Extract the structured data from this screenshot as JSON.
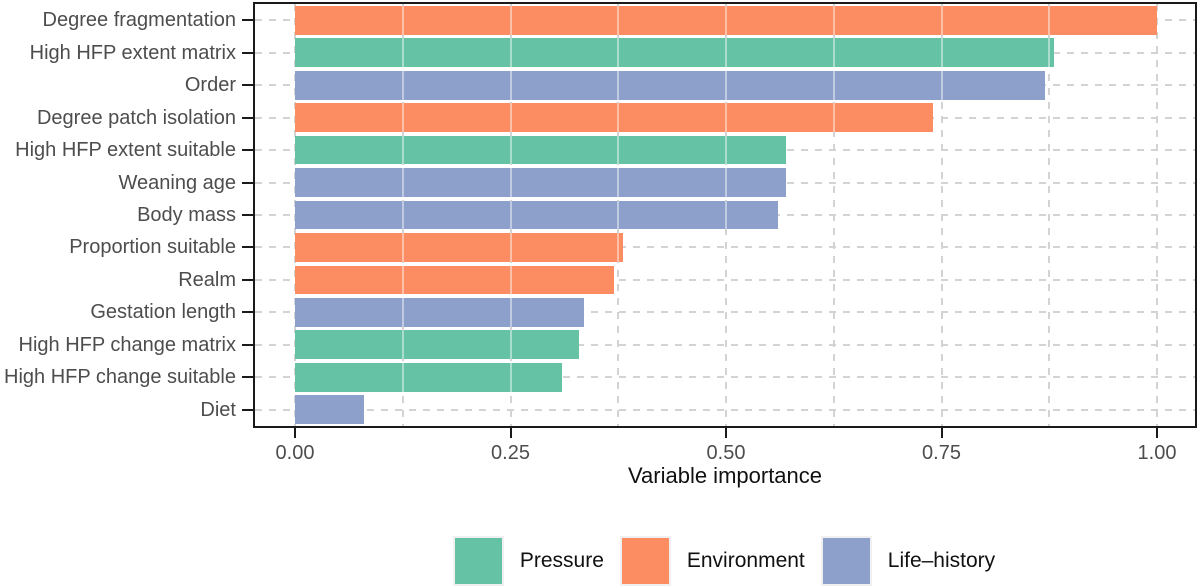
{
  "chart_data": {
    "type": "bar",
    "orientation": "horizontal",
    "title": "",
    "xlabel": "Variable importance",
    "ylabel": "",
    "xlim": [
      0,
      1.0
    ],
    "grid": "dashed-major-and-minor",
    "legend_position": "bottom",
    "categories": [
      "Degree fragmentation",
      "High HFP extent matrix",
      "Order",
      "Degree patch isolation",
      "High HFP extent suitable",
      "Weaning age",
      "Body mass",
      "Proportion suitable",
      "Realm",
      "Gestation length",
      "High HFP change matrix",
      "High HFP change suitable",
      "Diet"
    ],
    "values": [
      1.0,
      0.88,
      0.87,
      0.74,
      0.57,
      0.57,
      0.56,
      0.38,
      0.37,
      0.335,
      0.33,
      0.31,
      0.08
    ],
    "groups": [
      "Environment",
      "Pressure",
      "Life–history",
      "Environment",
      "Pressure",
      "Life–history",
      "Life–history",
      "Environment",
      "Environment",
      "Life–history",
      "Pressure",
      "Pressure",
      "Life–history"
    ],
    "series_colors": {
      "Pressure": "#66C2A5",
      "Environment": "#FC8D62",
      "Life–history": "#8DA0CB"
    },
    "xticks": [
      0.0,
      0.25,
      0.5,
      0.75,
      1.0
    ],
    "xtick_labels": [
      "0.00",
      "0.25",
      "0.50",
      "0.75",
      "1.00"
    ],
    "gridlines_x": [
      0.0,
      0.125,
      0.25,
      0.375,
      0.5,
      0.625,
      0.75,
      0.875,
      1.0
    ],
    "legend": {
      "entries": [
        {
          "label": "Pressure",
          "color": "#66C2A5"
        },
        {
          "label": "Environment",
          "color": "#FC8D62"
        },
        {
          "label": "Life–history",
          "color": "#8DA0CB"
        }
      ]
    },
    "colors": {
      "axis_text": "#4d4d4d",
      "axis_title": "#111111",
      "panel_border": "#1a1a1a",
      "gridline": "#d3d3d3",
      "background": "#ffffff"
    }
  }
}
